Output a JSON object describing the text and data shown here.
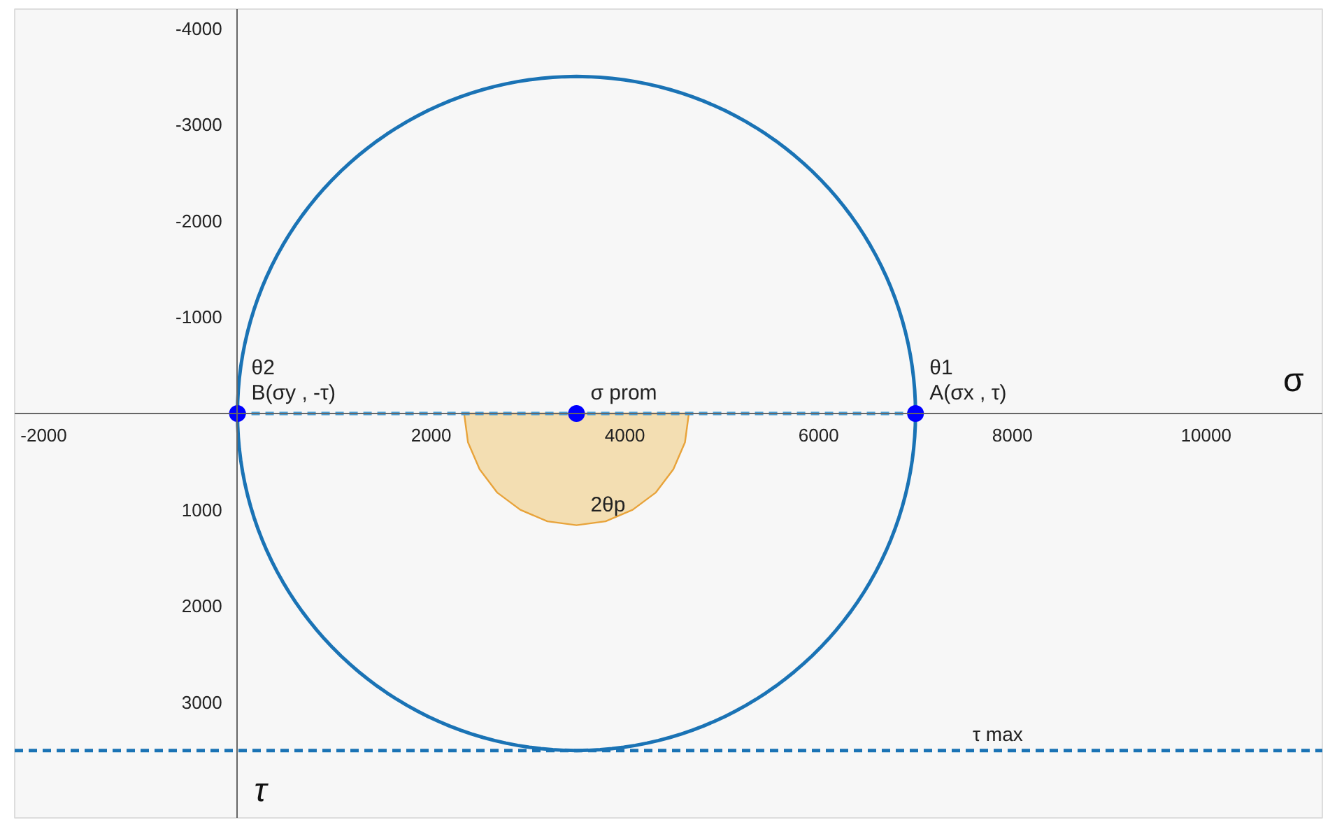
{
  "chart_data": {
    "type": "line",
    "xlabel": "σ",
    "ylabel": "τ",
    "xlim": [
      -2300,
      11200
    ],
    "ylim": [
      4200,
      -4200
    ],
    "xticks": [
      -2000,
      2000,
      4000,
      6000,
      8000,
      10000
    ],
    "yticks": [
      -4000,
      -3000,
      -2000,
      -1000,
      1000,
      2000,
      3000
    ],
    "series": [
      {
        "color": "#4a9fd6",
        "line_style": "dashed",
        "x": [
          0,
          7000
        ],
        "values": [
          0,
          0
        ]
      },
      {
        "type": "area",
        "color": "#f2d9a6",
        "x": [
          2340,
          2380,
          2500,
          2680,
          2920,
          3200,
          3500,
          3800,
          4080,
          4320,
          4500,
          4620,
          4660
        ],
        "values": [
          0,
          300,
          580,
          820,
          1000,
          1120,
          1160,
          1120,
          1000,
          820,
          580,
          300,
          0
        ]
      },
      {
        "type": "scatter",
        "color": "#0000ff",
        "marker": "circle",
        "x": [
          0,
          3500,
          7000
        ],
        "values": [
          0,
          0,
          0
        ]
      }
    ],
    "grid": false,
    "ref_lines": [
      {
        "axis": "y",
        "value": 3500,
        "label": "τ max",
        "color": "#1a73b5",
        "line_style": "dashed"
      }
    ],
    "annotations": [
      {
        "text": "σ prom",
        "x": 3500,
        "y": 0
      },
      {
        "text": "A(σx , τ)",
        "x": 7000,
        "y": 0
      },
      {
        "text": "θ1",
        "x": 7000,
        "y": 0
      },
      {
        "text": "B(σy , -τ)",
        "x": 0,
        "y": 0
      },
      {
        "text": "θ2",
        "x": 0,
        "y": 0
      },
      {
        "text": "2θp",
        "x": 3500,
        "y": 1160
      }
    ]
  }
}
